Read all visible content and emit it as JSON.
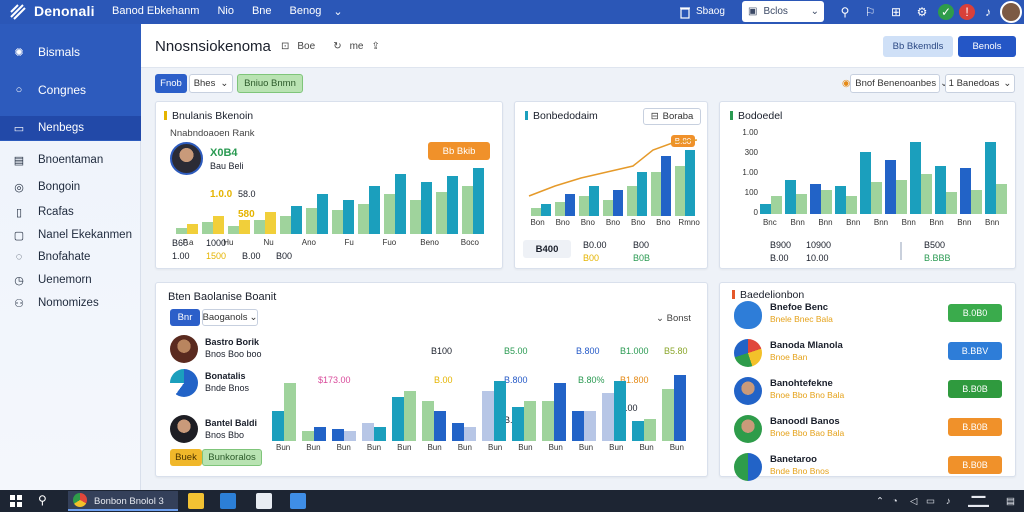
{
  "app": {
    "name": "Denonali"
  },
  "topnav": {
    "items": [
      "Banod Ebkehanm",
      "Nio",
      "Bne",
      "Benog"
    ],
    "search_label": "Bclos",
    "trash_label": "Sbaog"
  },
  "sidebar": {
    "items": [
      {
        "label": "Bismals",
        "icon": "gear-icon"
      },
      {
        "label": "Congnes",
        "icon": "search-icon"
      },
      {
        "label": "Nenbegs",
        "icon": "card-icon"
      },
      {
        "label": "Bnoentaman",
        "icon": "grid-icon"
      },
      {
        "label": "Bongoin",
        "icon": "globe-icon"
      },
      {
        "label": "Rcafas",
        "icon": "doc-icon"
      },
      {
        "label": "Nanel Ekekanmen",
        "icon": "panel-icon"
      },
      {
        "label": "Bnofahate",
        "icon": "shield-icon"
      },
      {
        "label": "Uenemorn",
        "icon": "clock-icon"
      },
      {
        "label": "Nomomizes",
        "icon": "people-icon"
      }
    ]
  },
  "header": {
    "title": "Nnosnsiokenoma",
    "tool1": "Boe",
    "tool2": "me",
    "btn_light": "Bb Bkemdls",
    "btn_primary": "Benols"
  },
  "filters": {
    "chip_blue": "Fnob",
    "chip_select": "Bhes",
    "chip_green": "Bniuo Bnmn",
    "right_chip1": "Bnof Benenoanbes",
    "right_chip2": "1 Banedoas"
  },
  "card1": {
    "title": "Bnulanis Bkenoin",
    "subtitle": "Nnabndoaoen Rank",
    "stat_main": "X0B4",
    "stat_sub": "Bau Beli",
    "pill": "Bb Bkib",
    "val_a": "1.0.0",
    "val_b": "58.0",
    "val_c": "580",
    "x_labels": [
      "F.a",
      "Hu",
      "Nu",
      "Ano",
      "Fu",
      "Fuo",
      "Beno",
      "Boco"
    ],
    "foot": [
      "B60",
      "1000",
      "1.00",
      "1500",
      "B.00",
      "B00"
    ]
  },
  "card2": {
    "title": "Bonbedodaim",
    "chip": "Boraba",
    "pill": "B.80",
    "x_labels": [
      "Bon",
      "Bno",
      "Bno",
      "Bno",
      "Bno",
      "Bno",
      "Rmno"
    ],
    "foot": [
      "B400",
      "B0.00",
      "B00",
      "B00",
      "B0B"
    ]
  },
  "card3": {
    "title": "Bodoedel",
    "y_labels": [
      "1.00",
      "300",
      "1.00",
      "100",
      "0"
    ],
    "x_labels": [
      "Bnc",
      "Bnn",
      "Bnn",
      "Bnn",
      "Bnn",
      "Bnn",
      "Bnn",
      "Bnn",
      "Bnn"
    ],
    "foot": [
      "B900",
      "10900",
      "B500",
      "B.00",
      "10.00",
      "B.BBB"
    ]
  },
  "card4": {
    "title": "Bten Baolanise Boanit",
    "tab_active": "Bnr",
    "tab_select": "Baoganols",
    "right_label": "Bonst",
    "people": [
      {
        "name": "Bastro Borik",
        "sub": "Bnos Boo boo"
      },
      {
        "name": "Bonatalis",
        "sub": "Bnde Bnos"
      },
      {
        "name": "Bantel Baldi",
        "sub": "Bnos Bbo"
      }
    ],
    "values": [
      "B100",
      "B5.00",
      "B.800",
      "B1.000",
      "B5.80",
      "$173.00",
      "B.00",
      "B.800",
      "B.80%",
      "B1.800",
      "B.00",
      "B.800"
    ],
    "footer_chip1": "Buek",
    "footer_chip2": "Bunkoralos",
    "x_labels": [
      "Bun",
      "Bun",
      "Bun",
      "Bun",
      "Bun",
      "Bun",
      "Bun",
      "Bun",
      "Bun",
      "Bun",
      "Bun",
      "Bun",
      "Bun",
      "Bun"
    ]
  },
  "card5": {
    "title": "Baedelionbon",
    "rows": [
      {
        "name": "Bnefoe Benc",
        "sub": "Bnele Bnec Bala",
        "badge": "B.0B0",
        "badge_color": "#3aab4c"
      },
      {
        "name": "Banoda Mlanola",
        "sub": "Bnoe Ban",
        "badge": "B.BBV",
        "badge_color": "#2e7dd8"
      },
      {
        "name": "Banohtefekne",
        "sub": "Bnoe Bbo Bno Bala",
        "badge": "B.B0B",
        "badge_color": "#2f9a3e"
      },
      {
        "name": "Banoodl Banos",
        "sub": "Bnoe Bbo Bao Bala",
        "badge": "B.B0B",
        "badge_color": "#f0912a"
      },
      {
        "name": "Banetaroo",
        "sub": "Bnde Bno Bnos",
        "badge": "B.B0B",
        "badge_color": "#f0912a"
      }
    ]
  },
  "taskbar": {
    "app_label": "Bonbon Bnolol 3"
  },
  "colors": {
    "primary": "#2b57b7",
    "teal": "#1b9fbd",
    "green": "#9fd39c",
    "blue": "#2263c7"
  }
}
